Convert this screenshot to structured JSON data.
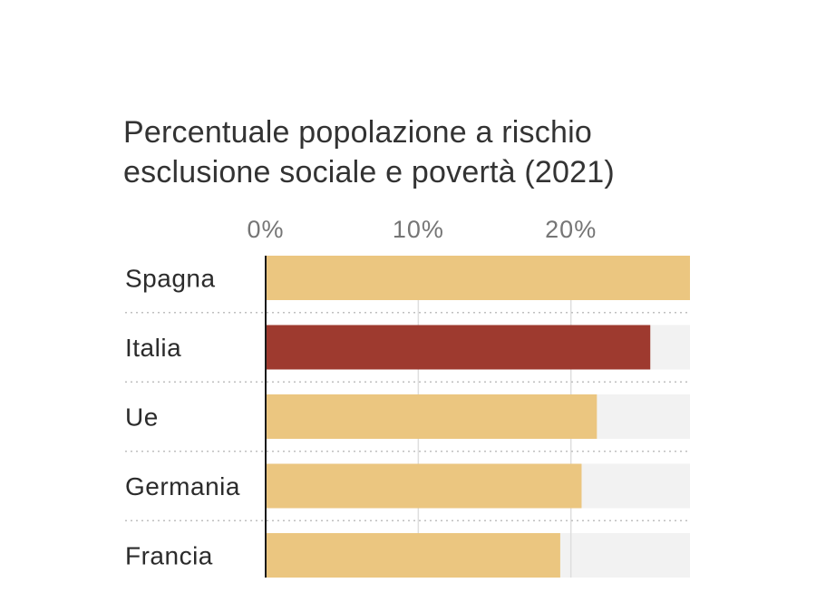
{
  "chart_data": {
    "type": "bar",
    "orientation": "horizontal",
    "title_lines": [
      "Percentuale popolazione a rischio",
      "esclusione sociale e povertà (2021)"
    ],
    "categories": [
      "Spagna",
      "Italia",
      "Ue",
      "Germania",
      "Francia"
    ],
    "values": [
      27.8,
      25.2,
      21.7,
      20.7,
      19.3
    ],
    "xlim": [
      0,
      27.8
    ],
    "x_ticks": [
      0,
      10,
      20
    ],
    "x_tick_labels": [
      "0%",
      "10%",
      "20%"
    ],
    "grid": true,
    "highlight_category": "Italia",
    "colors": {
      "bar": "#ebc680",
      "highlight": "#9e3a2f",
      "track": "#f2f2f2",
      "grid": "#dedede",
      "separator": "#bfbfbf",
      "axis": "#1a1a1a"
    }
  }
}
